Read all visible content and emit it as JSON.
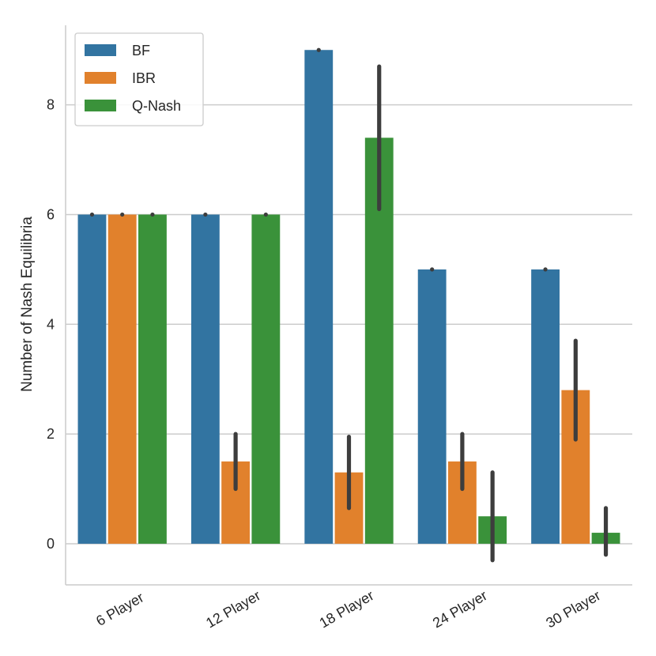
{
  "chart_data": {
    "type": "bar",
    "title": "",
    "xlabel": "",
    "ylabel": "Number of Nash Equilibria",
    "ylim": [
      -0.75,
      9.45
    ],
    "yticks": [
      0,
      2,
      4,
      6,
      8
    ],
    "grid": "horizontal",
    "legend_position": "top-left",
    "categories": [
      "6 Player",
      "12 Player",
      "18 Player",
      "24 Player",
      "30 Player"
    ],
    "series": [
      {
        "name": "BF",
        "color": "#3274a1",
        "values": [
          6,
          6,
          9,
          5,
          5
        ],
        "err_low": [
          6,
          6,
          9,
          5,
          5
        ],
        "err_high": [
          6,
          6,
          9,
          5,
          5
        ]
      },
      {
        "name": "IBR",
        "color": "#e1812c",
        "values": [
          6,
          1.5,
          1.3,
          1.5,
          2.8
        ],
        "err_low": [
          6,
          1.0,
          0.65,
          1.0,
          1.9
        ],
        "err_high": [
          6,
          2.0,
          1.95,
          2.0,
          3.7
        ]
      },
      {
        "name": "Q-Nash",
        "color": "#3a923a",
        "values": [
          6,
          6,
          7.4,
          0.5,
          0.2
        ],
        "err_low": [
          6,
          6,
          6.1,
          -0.3,
          -0.2
        ],
        "err_high": [
          6,
          6,
          8.7,
          1.3,
          0.65
        ]
      }
    ]
  }
}
